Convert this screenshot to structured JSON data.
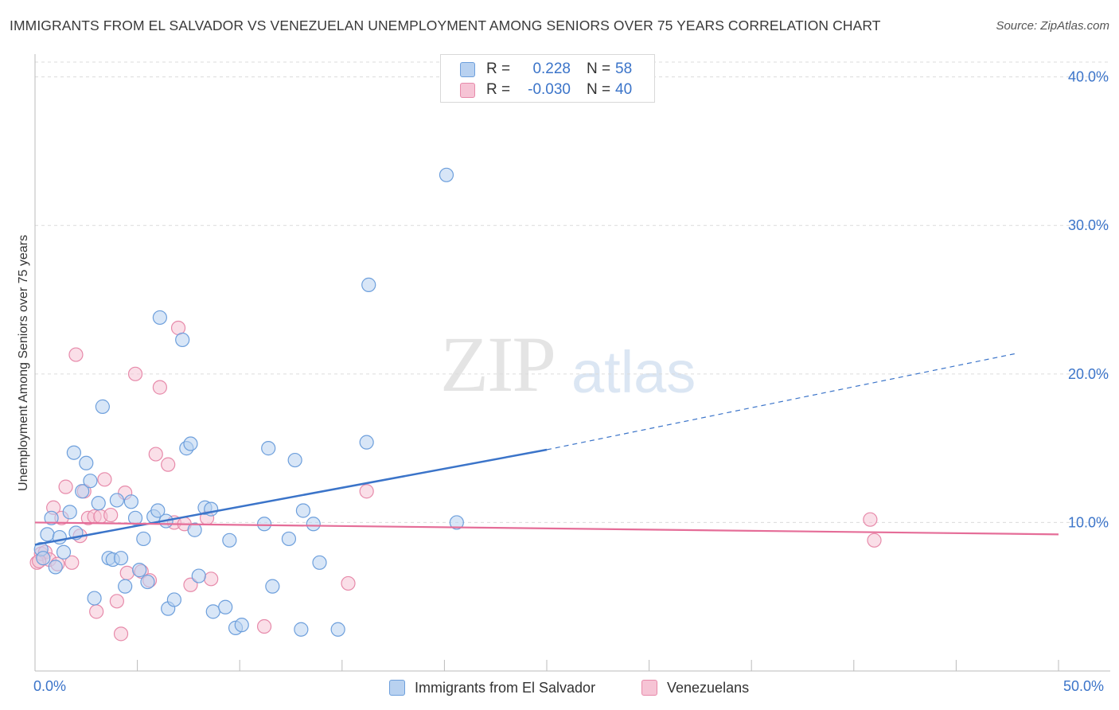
{
  "title": "IMMIGRANTS FROM EL SALVADOR VS VENEZUELAN UNEMPLOYMENT AMONG SENIORS OVER 75 YEARS CORRELATION CHART",
  "source": "Source: ZipAtlas.com",
  "watermark": {
    "zip": "ZIP",
    "atlas": "atlas"
  },
  "legend_top": [
    {
      "r_label": "R =",
      "r_value": "0.228",
      "n_label": "N =",
      "n_value": "58"
    },
    {
      "r_label": "R =",
      "r_value": "-0.030",
      "n_label": "N =",
      "n_value": "40"
    }
  ],
  "legend_bottom": [
    "Immigrants from El Salvador",
    "Venezuelans"
  ],
  "colors": {
    "blue_fill": "#b8d1f0",
    "blue_stroke": "#6d9fdc",
    "blue_line": "#3b74c9",
    "pink_fill": "#f6c4d5",
    "pink_stroke": "#e78aaa",
    "pink_line": "#e56d98",
    "axis_label": "#3b74c9",
    "grid": "#dcdcdc"
  },
  "chart_data": {
    "type": "scatter",
    "title": "IMMIGRANTS FROM EL SALVADOR VS VENEZUELAN UNEMPLOYMENT AMONG SENIORS OVER 75 YEARS CORRELATION CHART",
    "xlabel": "",
    "ylabel": "Unemployment Among Seniors over 75 years",
    "xlim": [
      0,
      50
    ],
    "ylim": [
      0,
      41
    ],
    "x_tick_labels": [
      "0.0%",
      "50.0%"
    ],
    "y_ticks": [
      10,
      20,
      30,
      40
    ],
    "y_tick_labels": [
      "10.0%",
      "20.0%",
      "30.0%",
      "40.0%"
    ],
    "grid": true,
    "series": [
      {
        "name": "Immigrants from El Salvador",
        "r": 0.228,
        "n": 58,
        "trend": {
          "x0": 0,
          "y0": 8.5,
          "x1": 25,
          "y1": 14.9,
          "dashed_to_x": 48,
          "dashed_to_y": 21.4
        },
        "points": [
          [
            0.3,
            8.2
          ],
          [
            0.4,
            7.6
          ],
          [
            0.6,
            9.2
          ],
          [
            0.8,
            10.3
          ],
          [
            1.0,
            7.0
          ],
          [
            1.2,
            9.0
          ],
          [
            1.4,
            8.0
          ],
          [
            1.7,
            10.7
          ],
          [
            1.9,
            14.7
          ],
          [
            2.0,
            9.3
          ],
          [
            2.3,
            12.1
          ],
          [
            2.5,
            14.0
          ],
          [
            2.7,
            12.8
          ],
          [
            2.9,
            4.9
          ],
          [
            3.1,
            11.3
          ],
          [
            3.3,
            17.8
          ],
          [
            3.6,
            7.6
          ],
          [
            3.8,
            7.5
          ],
          [
            4.0,
            11.5
          ],
          [
            4.2,
            7.6
          ],
          [
            4.4,
            5.7
          ],
          [
            4.7,
            11.4
          ],
          [
            4.9,
            10.3
          ],
          [
            5.1,
            6.8
          ],
          [
            5.3,
            8.9
          ],
          [
            5.5,
            6.0
          ],
          [
            5.8,
            10.4
          ],
          [
            6.0,
            10.8
          ],
          [
            6.1,
            23.8
          ],
          [
            6.4,
            10.1
          ],
          [
            6.5,
            4.2
          ],
          [
            6.8,
            4.8
          ],
          [
            7.2,
            22.3
          ],
          [
            7.4,
            15.0
          ],
          [
            7.6,
            15.3
          ],
          [
            7.8,
            9.5
          ],
          [
            8.0,
            6.4
          ],
          [
            8.3,
            11.0
          ],
          [
            8.6,
            10.9
          ],
          [
            8.7,
            4.0
          ],
          [
            9.3,
            4.3
          ],
          [
            9.5,
            8.8
          ],
          [
            9.8,
            2.9
          ],
          [
            10.1,
            3.1
          ],
          [
            11.2,
            9.9
          ],
          [
            11.4,
            15.0
          ],
          [
            11.6,
            5.7
          ],
          [
            12.4,
            8.9
          ],
          [
            12.7,
            14.2
          ],
          [
            13.1,
            10.8
          ],
          [
            13.0,
            2.8
          ],
          [
            13.6,
            9.9
          ],
          [
            13.9,
            7.3
          ],
          [
            14.8,
            2.8
          ],
          [
            16.2,
            15.4
          ],
          [
            16.3,
            26.0
          ],
          [
            20.1,
            33.4
          ],
          [
            20.6,
            10.0
          ]
        ]
      },
      {
        "name": "Venezuelans",
        "r": -0.03,
        "n": 40,
        "trend": {
          "x0": 0,
          "y0": 10.0,
          "x1": 50,
          "y1": 9.2
        },
        "points": [
          [
            0.1,
            7.3
          ],
          [
            0.3,
            7.9
          ],
          [
            0.5,
            8.0
          ],
          [
            0.7,
            7.5
          ],
          [
            0.9,
            11.0
          ],
          [
            1.1,
            7.2
          ],
          [
            1.3,
            10.3
          ],
          [
            1.5,
            12.4
          ],
          [
            1.8,
            7.3
          ],
          [
            2.0,
            21.3
          ],
          [
            2.2,
            9.1
          ],
          [
            2.4,
            12.1
          ],
          [
            2.6,
            10.3
          ],
          [
            2.9,
            10.4
          ],
          [
            3.0,
            4.0
          ],
          [
            3.2,
            10.4
          ],
          [
            3.4,
            12.9
          ],
          [
            3.7,
            10.5
          ],
          [
            4.0,
            4.7
          ],
          [
            4.2,
            2.5
          ],
          [
            4.4,
            12.0
          ],
          [
            4.5,
            6.6
          ],
          [
            4.9,
            20.0
          ],
          [
            5.2,
            6.7
          ],
          [
            5.6,
            6.1
          ],
          [
            6.1,
            19.1
          ],
          [
            5.9,
            14.6
          ],
          [
            6.5,
            13.9
          ],
          [
            6.8,
            10.0
          ],
          [
            7.0,
            23.1
          ],
          [
            7.3,
            9.9
          ],
          [
            7.6,
            5.8
          ],
          [
            8.4,
            10.3
          ],
          [
            8.6,
            6.2
          ],
          [
            11.2,
            3.0
          ],
          [
            15.3,
            5.9
          ],
          [
            16.2,
            12.1
          ],
          [
            40.8,
            10.2
          ],
          [
            41.0,
            8.8
          ],
          [
            0.2,
            7.4
          ]
        ]
      }
    ]
  }
}
